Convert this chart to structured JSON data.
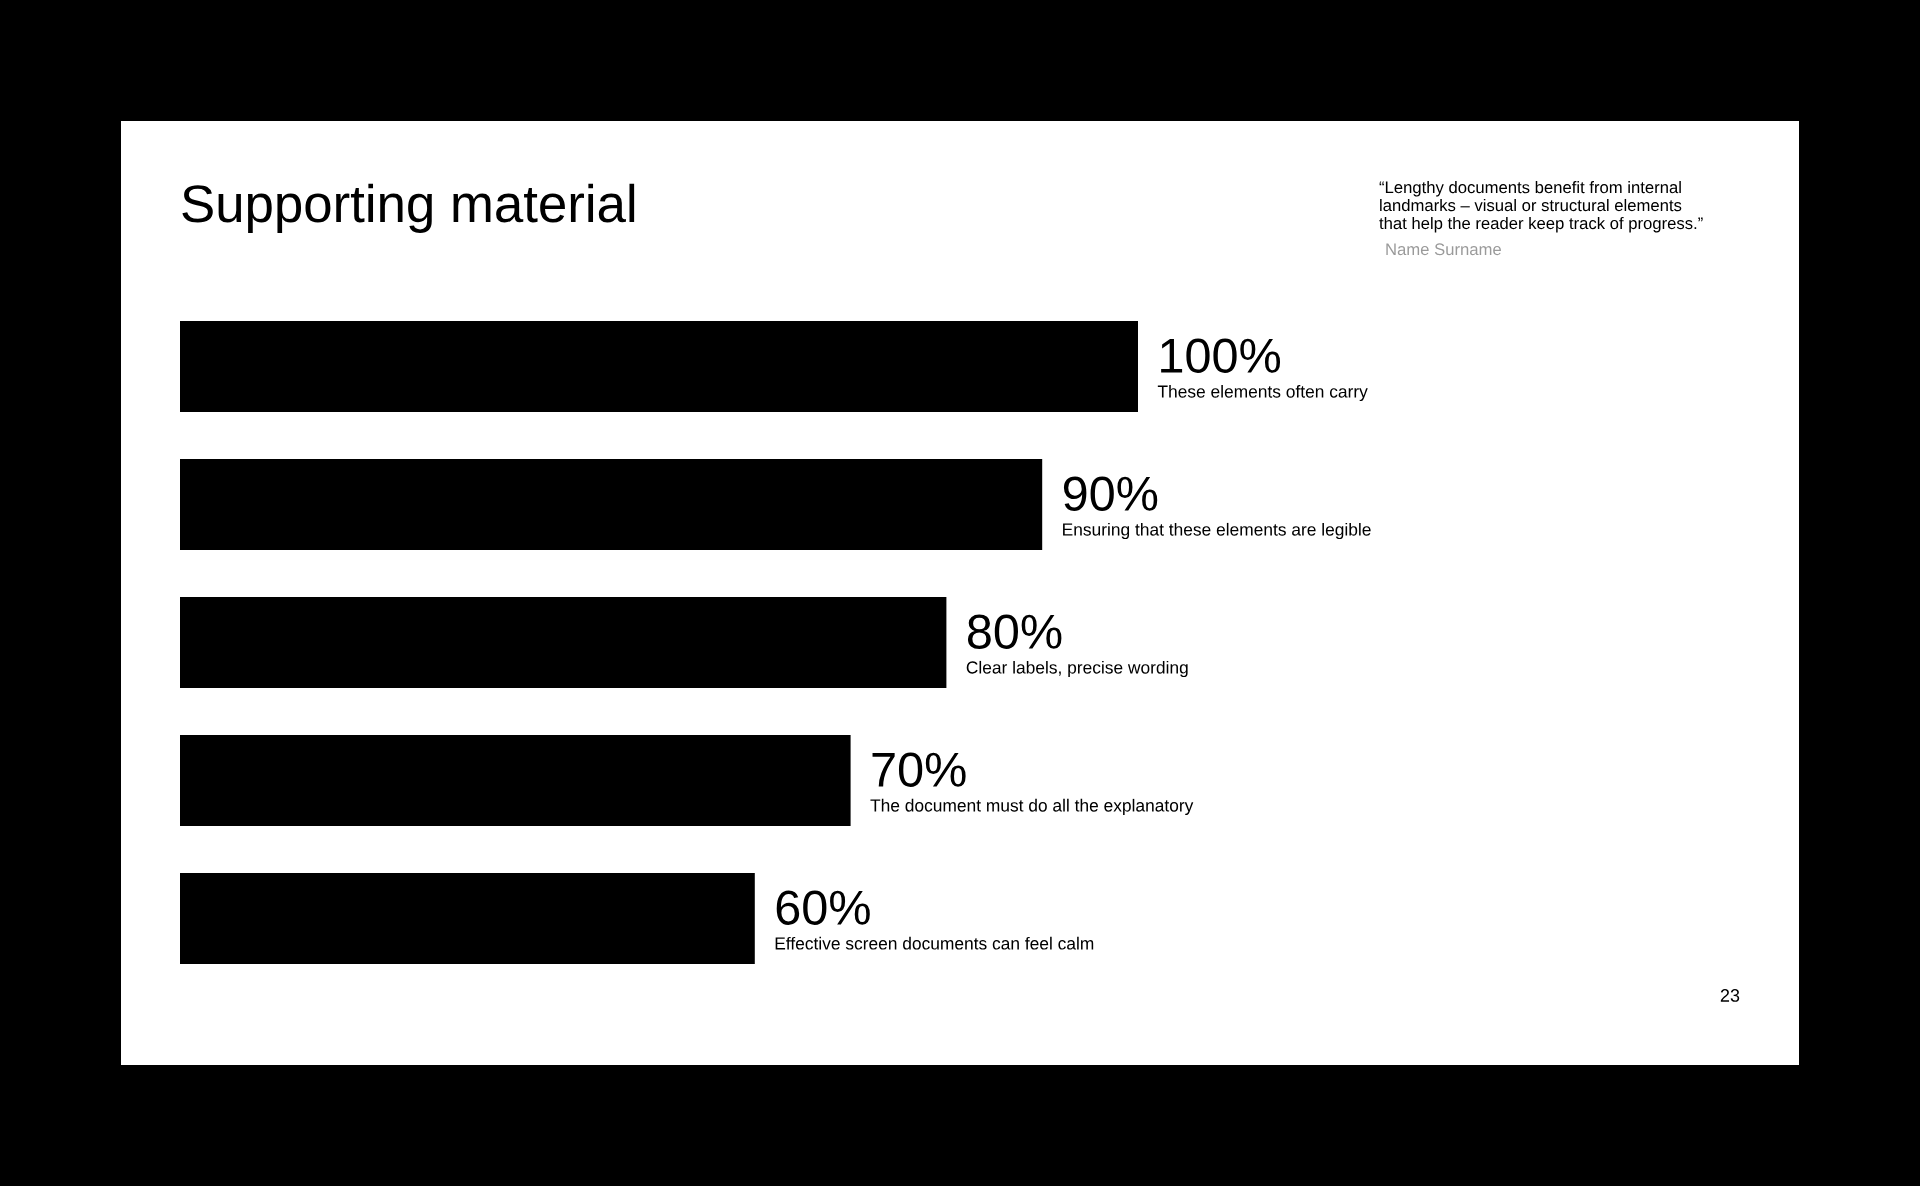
{
  "chart_data": {
    "type": "bar",
    "orientation": "horizontal",
    "title": "Supporting material",
    "categories": [
      "These elements often carry",
      "Ensuring that these elements are legible",
      "Clear labels, precise wording",
      "The document must do all the explanatory",
      "Effective screen documents can feel calm"
    ],
    "values": [
      100,
      90,
      80,
      70,
      60
    ],
    "value_labels": [
      "100%",
      "90%",
      "80%",
      "70%",
      "60%"
    ],
    "color": "#000000",
    "tick_labels": false,
    "annotations": [
      "“Lengthy documents benefit from internal\nlandmarks – visual or structural elements\nthat help the reader keep track of progress.”",
      "Name Surname",
      "23"
    ]
  }
}
